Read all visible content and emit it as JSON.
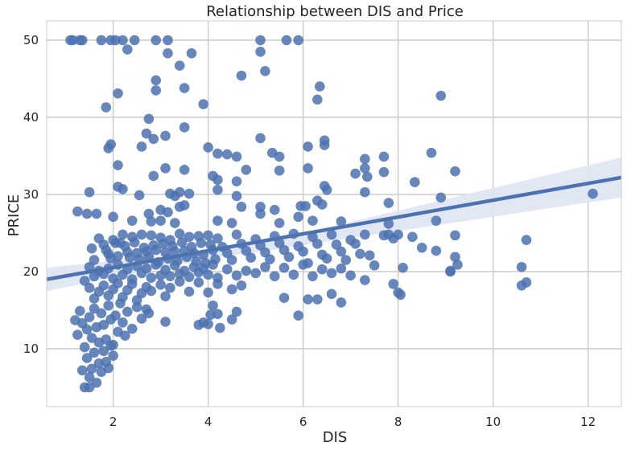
{
  "chart_data": {
    "type": "scatter",
    "title": "Relationship between DIS and Price",
    "xlabel": "DIS",
    "ylabel": "PRICE",
    "xlim": [
      0.6,
      12.7
    ],
    "ylim": [
      2.5,
      52.5
    ],
    "xticks": [
      2,
      4,
      6,
      8,
      10,
      12
    ],
    "yticks": [
      10,
      20,
      30,
      40,
      50
    ],
    "grid": true,
    "point_color": "#4c72b0",
    "band_color": "#dfe6f2",
    "regression": {
      "x": [
        0.6,
        12.7
      ],
      "y": [
        19.0,
        32.2
      ],
      "ci_lower": [
        17.5,
        29.6
      ],
      "ci_upper": [
        20.5,
        34.8
      ]
    },
    "points": [
      [
        1.1,
        50
      ],
      [
        1.15,
        50
      ],
      [
        1.3,
        50
      ],
      [
        1.35,
        50
      ],
      [
        1.75,
        50
      ],
      [
        1.95,
        50
      ],
      [
        2.05,
        50
      ],
      [
        2.2,
        50
      ],
      [
        2.45,
        50
      ],
      [
        2.9,
        50
      ],
      [
        3.15,
        50
      ],
      [
        5.1,
        50
      ],
      [
        5.65,
        50
      ],
      [
        5.9,
        50
      ],
      [
        2.3,
        48.8
      ],
      [
        3.15,
        48.3
      ],
      [
        3.65,
        48.3
      ],
      [
        5.1,
        48.5
      ],
      [
        3.4,
        46.7
      ],
      [
        5.2,
        46
      ],
      [
        4.7,
        45.4
      ],
      [
        2.9,
        44.8
      ],
      [
        6.35,
        44
      ],
      [
        2.9,
        43.5
      ],
      [
        3.5,
        43.8
      ],
      [
        2.1,
        43.1
      ],
      [
        8.9,
        42.8
      ],
      [
        6.3,
        42.3
      ],
      [
        3.9,
        41.7
      ],
      [
        1.85,
        41.3
      ],
      [
        2.75,
        39.8
      ],
      [
        3.5,
        38.7
      ],
      [
        2.7,
        37.9
      ],
      [
        3.1,
        37.6
      ],
      [
        5.1,
        37.3
      ],
      [
        2.85,
        37.2
      ],
      [
        6.45,
        37
      ],
      [
        6.45,
        36.4
      ],
      [
        1.95,
        36.5
      ],
      [
        1.9,
        36
      ],
      [
        2.6,
        36.2
      ],
      [
        4.0,
        36.1
      ],
      [
        6.1,
        36.2
      ],
      [
        8.7,
        35.4
      ],
      [
        4.2,
        35.3
      ],
      [
        4.4,
        35.2
      ],
      [
        4.6,
        34.9
      ],
      [
        5.35,
        35.4
      ],
      [
        5.5,
        34.9
      ],
      [
        7.3,
        34.6
      ],
      [
        7.7,
        34.9
      ],
      [
        2.1,
        33.8
      ],
      [
        3.1,
        33.4
      ],
      [
        3.5,
        33.2
      ],
      [
        4.8,
        33.2
      ],
      [
        5.5,
        33.1
      ],
      [
        6.1,
        33.4
      ],
      [
        7.3,
        33.4
      ],
      [
        7.7,
        32.9
      ],
      [
        9.2,
        33
      ],
      [
        7.1,
        32.7
      ],
      [
        2.85,
        32.4
      ],
      [
        4.1,
        32.4
      ],
      [
        4.2,
        31.9
      ],
      [
        4.6,
        31.7
      ],
      [
        6.45,
        31.1
      ],
      [
        6.5,
        30.6
      ],
      [
        7.35,
        32.3
      ],
      [
        8.35,
        31.6
      ],
      [
        1.5,
        30.3
      ],
      [
        2.1,
        31.0
      ],
      [
        2.2,
        30.7
      ],
      [
        3.2,
        30.1
      ],
      [
        3.3,
        29.8
      ],
      [
        3.4,
        30.3
      ],
      [
        3.6,
        30.1
      ],
      [
        4.2,
        30.6
      ],
      [
        2.55,
        29.9
      ],
      [
        4.6,
        29.8
      ],
      [
        6.3,
        29.2
      ],
      [
        7.3,
        30.3
      ],
      [
        7.8,
        28.9
      ],
      [
        8.9,
        29.6
      ],
      [
        1.25,
        27.8
      ],
      [
        1.45,
        27.5
      ],
      [
        1.65,
        27.5
      ],
      [
        2.0,
        27.1
      ],
      [
        3.0,
        28.0
      ],
      [
        3.15,
        27.7
      ],
      [
        3.4,
        28.4
      ],
      [
        3.5,
        28.6
      ],
      [
        2.75,
        27.5
      ],
      [
        4.7,
        28.4
      ],
      [
        5.1,
        28.4
      ],
      [
        5.4,
        28
      ],
      [
        5.95,
        28.5
      ],
      [
        6.05,
        28.5
      ],
      [
        6.4,
        28.7
      ],
      [
        5.1,
        27.5
      ],
      [
        5.9,
        27.1
      ],
      [
        2.4,
        26.6
      ],
      [
        2.8,
        26.5
      ],
      [
        3.0,
        26.6
      ],
      [
        3.3,
        26.3
      ],
      [
        4.2,
        26.6
      ],
      [
        4.5,
        26.3
      ],
      [
        5.5,
        26.3
      ],
      [
        6.2,
        26.6
      ],
      [
        6.8,
        26.5
      ],
      [
        7.8,
        26.2
      ],
      [
        8.8,
        26.6
      ],
      [
        1.55,
        23
      ],
      [
        1.6,
        21.5
      ],
      [
        1.7,
        24.3
      ],
      [
        1.8,
        23.5
      ],
      [
        1.85,
        22.8
      ],
      [
        1.9,
        22.3
      ],
      [
        1.95,
        21.7
      ],
      [
        2.0,
        24.1
      ],
      [
        2.05,
        23.7
      ],
      [
        2.1,
        22
      ],
      [
        2.15,
        23.7
      ],
      [
        2.2,
        24.8
      ],
      [
        2.25,
        23.3
      ],
      [
        2.3,
        22.5
      ],
      [
        2.35,
        21.8
      ],
      [
        2.4,
        24.5
      ],
      [
        2.45,
        23.8
      ],
      [
        2.5,
        22.4
      ],
      [
        2.55,
        21.6
      ],
      [
        2.6,
        24.8
      ],
      [
        2.65,
        23.1
      ],
      [
        2.7,
        22.6
      ],
      [
        2.75,
        21.9
      ],
      [
        2.8,
        24.7
      ],
      [
        2.85,
        23.4
      ],
      [
        2.9,
        22.8
      ],
      [
        2.95,
        21.2
      ],
      [
        3.0,
        24.4
      ],
      [
        3.05,
        23.6
      ],
      [
        3.1,
        22.5
      ],
      [
        3.15,
        21.7
      ],
      [
        3.2,
        24.1
      ],
      [
        3.25,
        23.3
      ],
      [
        3.3,
        22.6
      ],
      [
        3.35,
        21.4
      ],
      [
        3.4,
        24.9
      ],
      [
        3.45,
        23.8
      ],
      [
        3.5,
        22.7
      ],
      [
        3.55,
        21.9
      ],
      [
        3.6,
        24.5
      ],
      [
        3.65,
        23.2
      ],
      [
        3.7,
        22.4
      ],
      [
        3.75,
        21.3
      ],
      [
        3.8,
        24.6
      ],
      [
        3.85,
        23.7
      ],
      [
        3.9,
        22.2
      ],
      [
        3.95,
        21.1
      ],
      [
        4.0,
        24.7
      ],
      [
        4.05,
        23.5
      ],
      [
        4.1,
        22.8
      ],
      [
        4.15,
        21.6
      ],
      [
        4.2,
        24.3
      ],
      [
        4.3,
        23.2
      ],
      [
        4.4,
        22.4
      ],
      [
        4.5,
        21.5
      ],
      [
        4.6,
        24.8
      ],
      [
        4.7,
        23.6
      ],
      [
        4.8,
        22.7
      ],
      [
        4.9,
        21.8
      ],
      [
        5.0,
        24.2
      ],
      [
        5.1,
        23.4
      ],
      [
        5.2,
        22.5
      ],
      [
        5.3,
        21.6
      ],
      [
        5.4,
        24.6
      ],
      [
        5.5,
        23.7
      ],
      [
        5.6,
        22.8
      ],
      [
        5.7,
        21.9
      ],
      [
        5.8,
        24.9
      ],
      [
        5.9,
        23.3
      ],
      [
        6.0,
        22.6
      ],
      [
        6.1,
        21.1
      ],
      [
        6.2,
        24.5
      ],
      [
        6.3,
        23.6
      ],
      [
        6.4,
        22.2
      ],
      [
        6.5,
        21.7
      ],
      [
        6.6,
        24.8
      ],
      [
        6.7,
        23.5
      ],
      [
        6.8,
        22.6
      ],
      [
        6.9,
        21.5
      ],
      [
        7.0,
        24.1
      ],
      [
        7.1,
        23.6
      ],
      [
        7.2,
        22.3
      ],
      [
        7.3,
        24.8
      ],
      [
        7.4,
        22.1
      ],
      [
        7.7,
        24.7
      ],
      [
        7.8,
        24.8
      ],
      [
        7.9,
        24.3
      ],
      [
        8.0,
        24.8
      ],
      [
        8.3,
        24.5
      ],
      [
        8.5,
        23.1
      ],
      [
        8.8,
        22.7
      ],
      [
        9.2,
        24.7
      ],
      [
        9.2,
        21.9
      ],
      [
        9.25,
        20.9
      ],
      [
        9.1,
        20.1
      ],
      [
        1.5,
        20.6
      ],
      [
        1.6,
        19.4
      ],
      [
        1.7,
        20.1
      ],
      [
        1.8,
        19.7
      ],
      [
        1.9,
        20.4
      ],
      [
        2.0,
        19.1
      ],
      [
        2.1,
        20.9
      ],
      [
        2.2,
        19.6
      ],
      [
        2.3,
        20.3
      ],
      [
        2.4,
        19.0
      ],
      [
        2.5,
        20.7
      ],
      [
        2.6,
        19.8
      ],
      [
        2.7,
        20.4
      ],
      [
        2.8,
        19.2
      ],
      [
        2.9,
        20.9
      ],
      [
        3.0,
        19.5
      ],
      [
        3.1,
        20.2
      ],
      [
        3.2,
        19.4
      ],
      [
        3.3,
        20.8
      ],
      [
        3.4,
        19.7
      ],
      [
        3.5,
        20.1
      ],
      [
        3.6,
        19.3
      ],
      [
        3.7,
        20.6
      ],
      [
        3.8,
        19.9
      ],
      [
        3.9,
        20.4
      ],
      [
        4.0,
        19.6
      ],
      [
        4.1,
        20.9
      ],
      [
        4.2,
        19.2
      ],
      [
        4.4,
        20.3
      ],
      [
        4.6,
        19.5
      ],
      [
        4.8,
        20.1
      ],
      [
        5.0,
        19.8
      ],
      [
        5.2,
        20.6
      ],
      [
        5.4,
        19.4
      ],
      [
        5.6,
        20.5
      ],
      [
        5.8,
        19.6
      ],
      [
        6.0,
        20.9
      ],
      [
        6.2,
        19.4
      ],
      [
        6.4,
        20.3
      ],
      [
        6.6,
        19.8
      ],
      [
        6.8,
        20.4
      ],
      [
        7.0,
        19.5
      ],
      [
        7.3,
        18.9
      ],
      [
        7.5,
        20.8
      ],
      [
        7.9,
        18.4
      ],
      [
        8.0,
        17.3
      ],
      [
        8.05,
        17.0
      ],
      [
        8.1,
        20.5
      ],
      [
        9.1,
        20.0
      ],
      [
        10.6,
        20.6
      ],
      [
        10.6,
        18.2
      ],
      [
        10.7,
        18.6
      ],
      [
        10.7,
        24.1
      ],
      [
        12.1,
        30.1
      ],
      [
        1.4,
        18.8
      ],
      [
        1.5,
        17.9
      ],
      [
        1.6,
        16.5
      ],
      [
        1.7,
        17.4
      ],
      [
        1.8,
        18.2
      ],
      [
        1.9,
        16.9
      ],
      [
        2.0,
        17.7
      ],
      [
        2.1,
        18.5
      ],
      [
        2.2,
        16.7
      ],
      [
        2.3,
        17.6
      ],
      [
        2.4,
        18.4
      ],
      [
        2.5,
        16.3
      ],
      [
        2.6,
        17.2
      ],
      [
        2.7,
        18.0
      ],
      [
        2.8,
        17.5
      ],
      [
        3.0,
        18.3
      ],
      [
        3.1,
        16.8
      ],
      [
        3.2,
        17.9
      ],
      [
        3.4,
        18.7
      ],
      [
        3.6,
        17.4
      ],
      [
        3.8,
        18.6
      ],
      [
        4.0,
        17.3
      ],
      [
        4.2,
        18.4
      ],
      [
        4.5,
        17.7
      ],
      [
        4.7,
        18.2
      ],
      [
        5.6,
        16.6
      ],
      [
        5.9,
        14.3
      ],
      [
        6.1,
        16.4
      ],
      [
        6.3,
        16.4
      ],
      [
        6.6,
        17.1
      ],
      [
        6.8,
        16.0
      ],
      [
        1.2,
        13.7
      ],
      [
        1.25,
        11.8
      ],
      [
        1.3,
        14.9
      ],
      [
        1.35,
        13.3
      ],
      [
        1.4,
        10.2
      ],
      [
        1.45,
        12.5
      ],
      [
        1.5,
        14.1
      ],
      [
        1.55,
        11.4
      ],
      [
        1.6,
        15.2
      ],
      [
        1.65,
        12.8
      ],
      [
        1.7,
        10.8
      ],
      [
        1.75,
        14.6
      ],
      [
        1.8,
        13.1
      ],
      [
        1.85,
        11.2
      ],
      [
        1.9,
        15.6
      ],
      [
        1.95,
        13.8
      ],
      [
        2.0,
        10.5
      ],
      [
        2.05,
        14.3
      ],
      [
        2.1,
        12.2
      ],
      [
        2.15,
        15.9
      ],
      [
        2.2,
        13.4
      ],
      [
        2.25,
        11.7
      ],
      [
        2.3,
        14.8
      ],
      [
        2.4,
        12.6
      ],
      [
        2.5,
        15.4
      ],
      [
        2.6,
        13.9
      ],
      [
        2.7,
        15.1
      ],
      [
        2.75,
        14.6
      ],
      [
        3.1,
        13.5
      ],
      [
        3.8,
        13.1
      ],
      [
        3.9,
        13.4
      ],
      [
        4.0,
        13.2
      ],
      [
        4.05,
        14.4
      ],
      [
        4.1,
        15.6
      ],
      [
        4.2,
        14.5
      ],
      [
        4.25,
        12.7
      ],
      [
        4.5,
        13.8
      ],
      [
        4.6,
        14.8
      ],
      [
        1.35,
        7.2
      ],
      [
        1.4,
        5.0
      ],
      [
        1.45,
        8.8
      ],
      [
        1.5,
        6.3
      ],
      [
        1.55,
        7.4
      ],
      [
        1.6,
        9.5
      ],
      [
        1.65,
        5.6
      ],
      [
        1.7,
        8.1
      ],
      [
        1.75,
        7.0
      ],
      [
        1.8,
        9.7
      ],
      [
        1.85,
        8.3
      ],
      [
        1.9,
        7.5
      ],
      [
        1.95,
        10.4
      ],
      [
        2.0,
        9.1
      ],
      [
        1.5,
        5.0
      ]
    ]
  }
}
